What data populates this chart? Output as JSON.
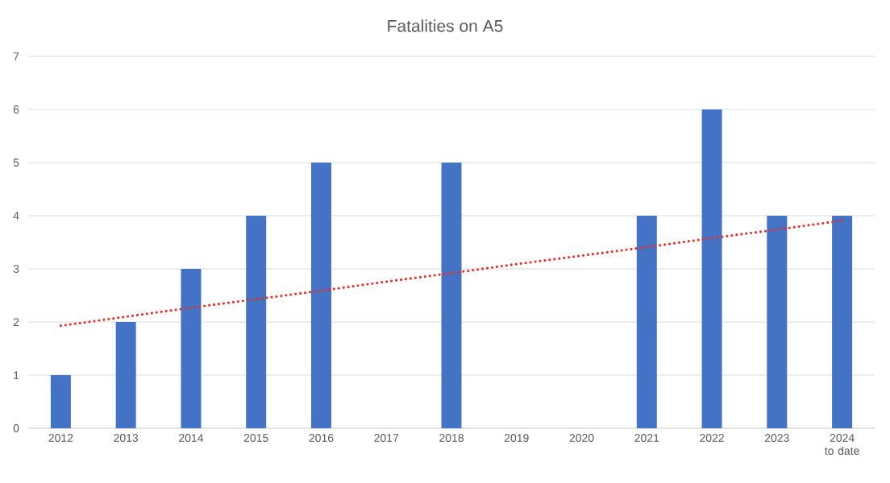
{
  "chart_data": {
    "type": "bar",
    "title": "Fatalities on A5",
    "categories": [
      "2012",
      "2013",
      "2014",
      "2015",
      "2016",
      "2017",
      "2018",
      "2019",
      "2020",
      "2021",
      "2022",
      "2023",
      "2024 to date"
    ],
    "series": [
      {
        "color": "#4472c4",
        "values": [
          1,
          2,
          3,
          4,
          5,
          0,
          5,
          0,
          0,
          4,
          6,
          4,
          4
        ]
      },
      {
        "type": "line",
        "color": "#e0312a",
        "line_style": "dotted",
        "marker": "none",
        "values": [
          1.93,
          2.1,
          2.27,
          2.43,
          2.59,
          2.76,
          2.92,
          3.09,
          3.25,
          3.41,
          3.58,
          3.74,
          3.91
        ]
      }
    ],
    "ylim": [
      0,
      7
    ],
    "yticks": [
      0,
      1,
      2,
      3,
      4,
      5,
      6,
      7
    ],
    "grid": "y"
  }
}
